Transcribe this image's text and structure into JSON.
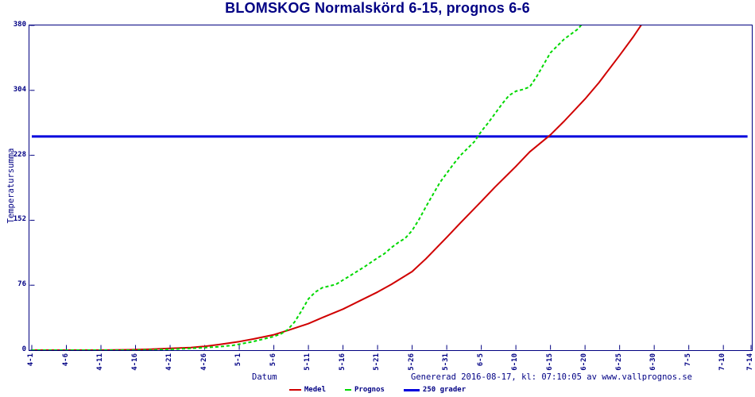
{
  "chart_data": {
    "type": "line",
    "title": "BLOMSKOG Normalskörd 6-15, prognos 6-6",
    "xlabel": "Datum",
    "ylabel": "Temperatursumma",
    "footer": "Genererad 2016-08-17, kl: 07:10:05 av www.vallprognos.se",
    "ylim": [
      0,
      380
    ],
    "y_ticks": [
      0,
      76,
      152,
      228,
      304,
      380
    ],
    "x_axis_unit": "days from 4-1",
    "x_range_days": [
      0,
      104
    ],
    "x_ticks": [
      {
        "day": 0,
        "label": "4-1"
      },
      {
        "day": 5,
        "label": "4-6"
      },
      {
        "day": 10,
        "label": "4-11"
      },
      {
        "day": 15,
        "label": "4-16"
      },
      {
        "day": 20,
        "label": "4-21"
      },
      {
        "day": 25,
        "label": "4-26"
      },
      {
        "day": 30,
        "label": "5-1"
      },
      {
        "day": 35,
        "label": "5-6"
      },
      {
        "day": 40,
        "label": "5-11"
      },
      {
        "day": 45,
        "label": "5-16"
      },
      {
        "day": 50,
        "label": "5-21"
      },
      {
        "day": 55,
        "label": "5-26"
      },
      {
        "day": 60,
        "label": "5-31"
      },
      {
        "day": 65,
        "label": "6-5"
      },
      {
        "day": 70,
        "label": "6-10"
      },
      {
        "day": 75,
        "label": "6-15"
      },
      {
        "day": 80,
        "label": "6-20"
      },
      {
        "day": 85,
        "label": "6-25"
      },
      {
        "day": 90,
        "label": "6-30"
      },
      {
        "day": 95,
        "label": "7-5"
      },
      {
        "day": 100,
        "label": "7-10"
      },
      {
        "day": 104,
        "label": "7-14"
      }
    ],
    "grid": false,
    "legend_position": "bottom-center",
    "colors": {
      "frame": "#000080",
      "text": "#000084"
    },
    "series": [
      {
        "name": "Medel",
        "color": "#d00000",
        "style": "solid",
        "width": 2,
        "points": [
          [
            0,
            0
          ],
          [
            5,
            0
          ],
          [
            10,
            0
          ],
          [
            14,
            0.5
          ],
          [
            17,
            1
          ],
          [
            20,
            2
          ],
          [
            23,
            3
          ],
          [
            25,
            4.5
          ],
          [
            27,
            6.5
          ],
          [
            30,
            10
          ],
          [
            32,
            13
          ],
          [
            35,
            18
          ],
          [
            37,
            23
          ],
          [
            40,
            31
          ],
          [
            42,
            38
          ],
          [
            45,
            48
          ],
          [
            47,
            56
          ],
          [
            50,
            68
          ],
          [
            52,
            77
          ],
          [
            55,
            92
          ],
          [
            57,
            107
          ],
          [
            60,
            132
          ],
          [
            62,
            149
          ],
          [
            65,
            174
          ],
          [
            67,
            191
          ],
          [
            70,
            215
          ],
          [
            72,
            232
          ],
          [
            75,
            252
          ],
          [
            77,
            268
          ],
          [
            80,
            294
          ],
          [
            82,
            313
          ],
          [
            85,
            345
          ],
          [
            87,
            367
          ],
          [
            88.5,
            385
          ]
        ]
      },
      {
        "name": "Prognos",
        "color": "#00d800",
        "style": "dashed",
        "width": 2,
        "points": [
          [
            0,
            0
          ],
          [
            5,
            0
          ],
          [
            10,
            0
          ],
          [
            14,
            0
          ],
          [
            18,
            0.5
          ],
          [
            20,
            1
          ],
          [
            23,
            2
          ],
          [
            25,
            3
          ],
          [
            27,
            4
          ],
          [
            29,
            5.5
          ],
          [
            30,
            7
          ],
          [
            32,
            10
          ],
          [
            34,
            14
          ],
          [
            35,
            16
          ],
          [
            36,
            19
          ],
          [
            37,
            24
          ],
          [
            38,
            33
          ],
          [
            39,
            46
          ],
          [
            40,
            60
          ],
          [
            41,
            68
          ],
          [
            42,
            73
          ],
          [
            43,
            75
          ],
          [
            44,
            77
          ],
          [
            45,
            82
          ],
          [
            46,
            87
          ],
          [
            47,
            92
          ],
          [
            48,
            97
          ],
          [
            50,
            108
          ],
          [
            51,
            113
          ],
          [
            52,
            120
          ],
          [
            53,
            126
          ],
          [
            54,
            131
          ],
          [
            55,
            140
          ],
          [
            56,
            153
          ],
          [
            57,
            168
          ],
          [
            58,
            182
          ],
          [
            59,
            196
          ],
          [
            60,
            207
          ],
          [
            61,
            218
          ],
          [
            62,
            228
          ],
          [
            63,
            236
          ],
          [
            64,
            244
          ],
          [
            65,
            256
          ],
          [
            66,
            266
          ],
          [
            67,
            277
          ],
          [
            68,
            288
          ],
          [
            69,
            298
          ],
          [
            70,
            303
          ],
          [
            71,
            305
          ],
          [
            72,
            308
          ],
          [
            73,
            320
          ],
          [
            74,
            334
          ],
          [
            75,
            348
          ],
          [
            76,
            356
          ],
          [
            77,
            364
          ],
          [
            78,
            370
          ],
          [
            79,
            376
          ],
          [
            80,
            386
          ]
        ]
      },
      {
        "name": "250 grader",
        "color": "#0000dd",
        "style": "solid",
        "width": 3,
        "points": [
          [
            0,
            250
          ],
          [
            103.5,
            250
          ]
        ]
      }
    ]
  }
}
